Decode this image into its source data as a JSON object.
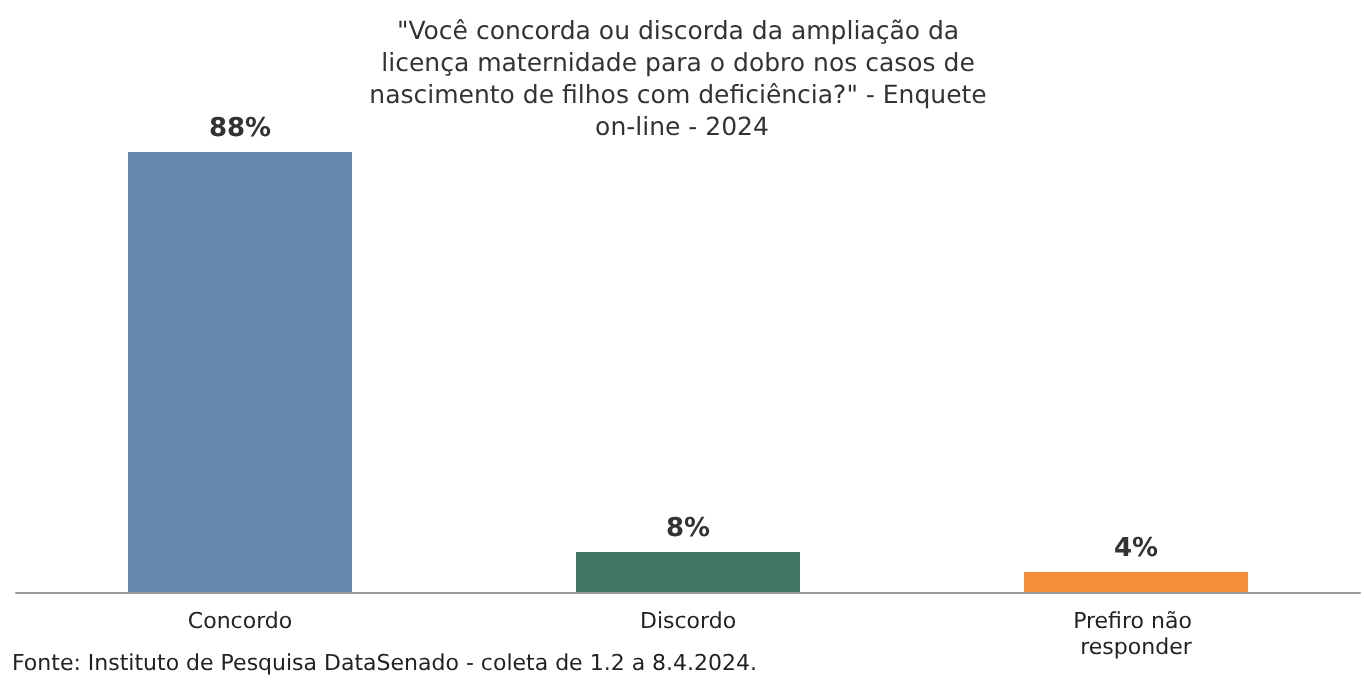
{
  "chart_data": {
    "type": "bar",
    "title": "\"Você concorda ou discorda da ampliação da licença maternidade para o dobro nos casos de nascimento de filhos com deficiência?\" - Enquete on-line - 2024",
    "categories": [
      "Concordo",
      "Discordo",
      "Prefiro não responder"
    ],
    "values": [
      88,
      8,
      4
    ],
    "colors": [
      "#6688b0",
      "#427561",
      "#f58f3c"
    ],
    "value_labels": [
      "88%",
      "8%",
      "4%"
    ],
    "annotations": [
      "Fonte: Instituto de Pesquisa DataSenado - coleta de 1.2 a 8.4.2024."
    ],
    "grid": false
  }
}
